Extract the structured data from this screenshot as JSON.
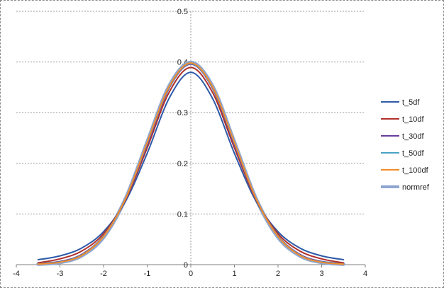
{
  "chart_data": {
    "type": "line",
    "title": "",
    "xlabel": "",
    "ylabel": "",
    "xlim": [
      -4,
      4
    ],
    "ylim": [
      0,
      0.5
    ],
    "x_ticks": [
      "-4",
      "-3",
      "-2",
      "-1",
      "0",
      "1",
      "2",
      "3",
      "4"
    ],
    "y_ticks": [
      "0",
      "0.1",
      "0.2",
      "0.3",
      "0.4",
      "0.5"
    ],
    "grid": "horizontal-dashed",
    "legend_position": "right",
    "x_range_of_curves": [
      -3.5,
      3.5
    ],
    "series": [
      {
        "name": "t_5df",
        "color": "#2e5aa8",
        "x": [
          -3.5,
          -3,
          -2.5,
          -2,
          -1.5,
          -1,
          -0.5,
          0,
          0.5,
          1,
          1.5,
          2,
          2.5,
          3,
          3.5
        ],
        "values": [
          0.0097,
          0.0173,
          0.0329,
          0.0651,
          0.1245,
          0.2197,
          0.3279,
          0.3796,
          0.3279,
          0.2197,
          0.1245,
          0.0651,
          0.0329,
          0.0173,
          0.0097
        ]
      },
      {
        "name": "t_10df",
        "color": "#b0302c",
        "x": [
          -3.5,
          -3,
          -2.5,
          -2,
          -1.5,
          -1,
          -0.5,
          0,
          0.5,
          1,
          1.5,
          2,
          2.5,
          3,
          3.5
        ],
        "values": [
          0.0035,
          0.0114,
          0.0269,
          0.0611,
          0.1274,
          0.2304,
          0.3397,
          0.3891,
          0.3397,
          0.2304,
          0.1274,
          0.0611,
          0.0269,
          0.0114,
          0.0035
        ]
      },
      {
        "name": "t_30df",
        "color": "#6a3d9a",
        "x": [
          -3.5,
          -3,
          -2.5,
          -2,
          -1.5,
          -1,
          -0.5,
          0,
          0.5,
          1,
          1.5,
          2,
          2.5,
          3,
          3.5
        ],
        "values": [
          0.0016,
          0.0059,
          0.0203,
          0.0571,
          0.129,
          0.236,
          0.3478,
          0.3956,
          0.3478,
          0.236,
          0.129,
          0.0571,
          0.0203,
          0.0059,
          0.0016
        ]
      },
      {
        "name": "t_50df",
        "color": "#4aa3c4",
        "x": [
          -3.5,
          -3,
          -2.5,
          -2,
          -1.5,
          -1,
          -0.5,
          0,
          0.5,
          1,
          1.5,
          2,
          2.5,
          3,
          3.5
        ],
        "values": [
          0.0013,
          0.0052,
          0.019,
          0.0564,
          0.1293,
          0.2396,
          0.3492,
          0.3969,
          0.3492,
          0.2396,
          0.1293,
          0.0564,
          0.019,
          0.0052,
          0.0013
        ]
      },
      {
        "name": "t_100df",
        "color": "#f28c28",
        "x": [
          -3.5,
          -3,
          -2.5,
          -2,
          -1.5,
          -1,
          -0.5,
          0,
          0.5,
          1,
          1.5,
          2,
          2.5,
          3,
          3.5
        ],
        "values": [
          0.0011,
          0.0048,
          0.0183,
          0.0557,
          0.1295,
          0.241,
          0.3507,
          0.3979,
          0.3507,
          0.241,
          0.1295,
          0.0557,
          0.0183,
          0.0048,
          0.0011
        ]
      },
      {
        "name": "normref",
        "color": "#8fa6d0",
        "x": [
          -3.5,
          -3,
          -2.5,
          -2,
          -1.5,
          -1,
          -0.5,
          0,
          0.5,
          1,
          1.5,
          2,
          2.5,
          3,
          3.5
        ],
        "values": [
          0.0009,
          0.0044,
          0.0175,
          0.054,
          0.1295,
          0.242,
          0.3521,
          0.3989,
          0.3521,
          0.242,
          0.1295,
          0.054,
          0.0175,
          0.0044,
          0.0009
        ]
      }
    ]
  }
}
